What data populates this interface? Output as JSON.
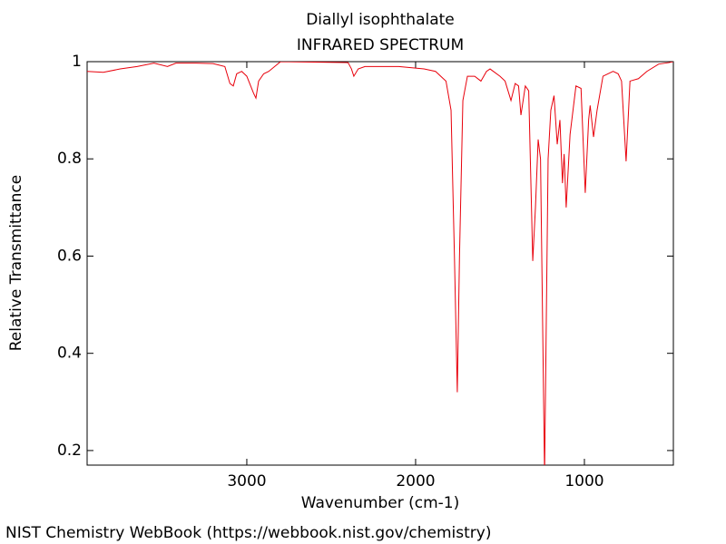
{
  "chart_data": {
    "type": "line",
    "title": "Diallyl isophthalate",
    "subtitle": "INFRARED SPECTRUM",
    "x_label": "Wavenumber (cm-1)",
    "y_label": "Relative Transmittance",
    "footer": "NIST Chemistry WebBook (https://webbook.nist.gov/chemistry)",
    "xlim": [
      3946,
      473
    ],
    "ylim": [
      0.17,
      1
    ],
    "xticks": [
      3000,
      2000,
      1000
    ],
    "yticks": [
      0.2,
      0.4,
      0.6,
      0.8,
      1
    ],
    "x": [
      3946,
      3850,
      3750,
      3650,
      3550,
      3470,
      3420,
      3300,
      3200,
      3130,
      3100,
      3080,
      3060,
      3030,
      3000,
      2960,
      2946,
      2930,
      2900,
      2870,
      2800,
      2600,
      2400,
      2380,
      2366,
      2340,
      2300,
      2100,
      1950,
      1882,
      1820,
      1790,
      1770,
      1753,
      1740,
      1720,
      1693,
      1650,
      1613,
      1580,
      1559,
      1500,
      1470,
      1435,
      1410,
      1390,
      1376,
      1350,
      1330,
      1306,
      1290,
      1274,
      1260,
      1236,
      1215,
      1199,
      1180,
      1161,
      1145,
      1130,
      1120,
      1108,
      1085,
      1050,
      1020,
      995,
      975,
      966,
      946,
      925,
      890,
      830,
      800,
      780,
      753,
      730,
      680,
      630,
      560,
      500,
      475
    ],
    "series": [
      {
        "name": "Diallyl isophthalate",
        "color": "#e8000b",
        "values": [
          0.98,
          0.978,
          0.985,
          0.99,
          0.997,
          0.99,
          0.997,
          0.997,
          0.996,
          0.99,
          0.955,
          0.95,
          0.975,
          0.98,
          0.97,
          0.935,
          0.925,
          0.96,
          0.975,
          0.98,
          1.0,
          0.999,
          0.998,
          0.985,
          0.97,
          0.985,
          0.99,
          0.99,
          0.985,
          0.98,
          0.96,
          0.9,
          0.6,
          0.32,
          0.6,
          0.92,
          0.97,
          0.97,
          0.96,
          0.98,
          0.985,
          0.97,
          0.96,
          0.92,
          0.955,
          0.95,
          0.89,
          0.95,
          0.94,
          0.59,
          0.7,
          0.84,
          0.8,
          0.15,
          0.8,
          0.9,
          0.93,
          0.83,
          0.88,
          0.75,
          0.81,
          0.7,
          0.85,
          0.95,
          0.945,
          0.73,
          0.88,
          0.91,
          0.845,
          0.9,
          0.97,
          0.98,
          0.975,
          0.96,
          0.795,
          0.96,
          0.965,
          0.98,
          0.995,
          0.998,
          1.0
        ]
      }
    ]
  }
}
